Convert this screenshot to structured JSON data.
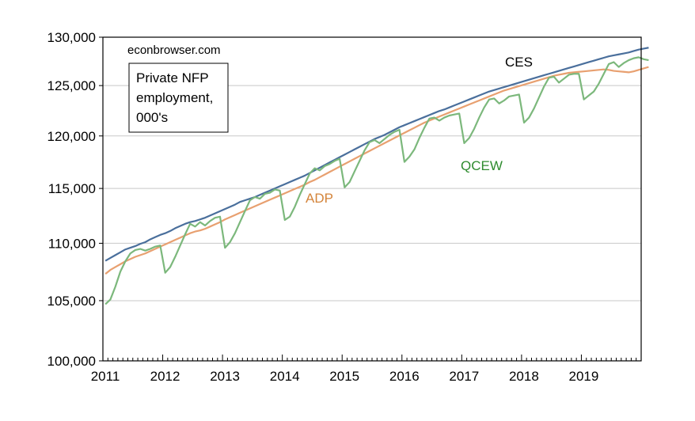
{
  "chart_data": {
    "type": "line",
    "x_axis": {
      "ticks": [
        "2011",
        "2012",
        "2013",
        "2014",
        "2015",
        "2016",
        "2017",
        "2018",
        "2019"
      ],
      "start_year": 2011,
      "end_year": 2020
    },
    "y_axis": {
      "ylim": [
        100000,
        130000
      ],
      "ticks": [
        100000,
        105000,
        110000,
        115000,
        120000,
        125000,
        130000
      ],
      "tick_labels": [
        "100,000",
        "105,000",
        "110,000",
        "115,000",
        "120,000",
        "125,000",
        "130,000"
      ],
      "scale": "log"
    },
    "grid": "horizontal",
    "annotations": {
      "source": "econbrowser.com",
      "box_lines": [
        "Private NFP",
        "employment,",
        "000's"
      ],
      "ces_label": "CES",
      "adp_label": "ADP",
      "qcew_label": "QCEW"
    },
    "series": [
      {
        "name": "CES",
        "color": "#4a6f9c",
        "start": "2011-01",
        "values": [
          108450,
          108700,
          108950,
          109200,
          109450,
          109600,
          109750,
          109950,
          110100,
          110350,
          110550,
          110750,
          110900,
          111100,
          111350,
          111550,
          111750,
          111900,
          112000,
          112150,
          112300,
          112500,
          112700,
          112900,
          113100,
          113300,
          113500,
          113750,
          113900,
          114050,
          114200,
          114400,
          114600,
          114800,
          115000,
          115200,
          115400,
          115600,
          115800,
          116000,
          116200,
          116450,
          116700,
          116950,
          117200,
          117450,
          117700,
          117950,
          118200,
          118450,
          118700,
          118950,
          119200,
          119450,
          119700,
          119900,
          120100,
          120350,
          120600,
          120850,
          121050,
          121250,
          121450,
          121650,
          121850,
          122050,
          122250,
          122450,
          122600,
          122800,
          123000,
          123200,
          123400,
          123600,
          123800,
          124000,
          124200,
          124400,
          124550,
          124700,
          124850,
          125000,
          125150,
          125300,
          125450,
          125600,
          125750,
          125900,
          126050,
          126200,
          126350,
          126500,
          126650,
          126800,
          126950,
          127100,
          127250,
          127400,
          127550,
          127700,
          127850,
          128000,
          128100,
          128200,
          128300,
          128400,
          128550,
          128700,
          128800,
          128900
        ]
      },
      {
        "name": "ADP",
        "color": "#e8a070",
        "start": "2011-01",
        "values": [
          107300,
          107650,
          107900,
          108150,
          108400,
          108600,
          108800,
          108950,
          109100,
          109300,
          109500,
          109700,
          109900,
          110100,
          110300,
          110500,
          110700,
          110900,
          111050,
          111150,
          111300,
          111500,
          111700,
          111900,
          112150,
          112350,
          112550,
          112750,
          112950,
          113150,
          113350,
          113550,
          113750,
          113950,
          114150,
          114350,
          114550,
          114750,
          114950,
          115150,
          115350,
          115600,
          115800,
          116050,
          116300,
          116550,
          116800,
          117050,
          117300,
          117550,
          117800,
          118050,
          118300,
          118550,
          118800,
          119050,
          119300,
          119550,
          119800,
          120050,
          120300,
          120550,
          120800,
          121050,
          121300,
          121500,
          121700,
          121900,
          122100,
          122300,
          122500,
          122700,
          122900,
          123100,
          123300,
          123500,
          123700,
          123900,
          124100,
          124300,
          124500,
          124650,
          124800,
          124950,
          125100,
          125250,
          125400,
          125550,
          125700,
          125850,
          126000,
          126100,
          126200,
          126300,
          126350,
          126400,
          126450,
          126500,
          126550,
          126600,
          126650,
          126600,
          126500,
          126450,
          126400,
          126350,
          126450,
          126600,
          126750,
          126900
        ]
      },
      {
        "name": "QCEW",
        "color": "#7cb87c",
        "start": "2011-01",
        "values": [
          104700,
          105100,
          106200,
          107500,
          108400,
          109100,
          109400,
          109500,
          109350,
          109500,
          109700,
          109800,
          107400,
          107900,
          108800,
          109800,
          110800,
          111750,
          111500,
          111900,
          111600,
          112000,
          112300,
          112400,
          109600,
          110100,
          110900,
          111900,
          112900,
          113900,
          114200,
          114050,
          114500,
          114600,
          114900,
          114800,
          112100,
          112400,
          113300,
          114400,
          115400,
          116400,
          116900,
          116700,
          117100,
          117300,
          117600,
          117800,
          115100,
          115600,
          116600,
          117600,
          118600,
          119400,
          119600,
          119300,
          119700,
          120100,
          120400,
          120600,
          117500,
          118000,
          118700,
          119800,
          120800,
          121700,
          121800,
          121500,
          121800,
          122000,
          122100,
          122200,
          119300,
          119800,
          120700,
          121800,
          122800,
          123600,
          123700,
          123200,
          123500,
          123900,
          124000,
          124100,
          121300,
          121800,
          122700,
          123800,
          124900,
          125800,
          125900,
          125300,
          125700,
          126100,
          126200,
          126200,
          123600,
          124000,
          124400,
          125200,
          126200,
          127200,
          127400,
          126900,
          127300,
          127600,
          127800,
          127900,
          127700,
          127600
        ]
      }
    ]
  }
}
